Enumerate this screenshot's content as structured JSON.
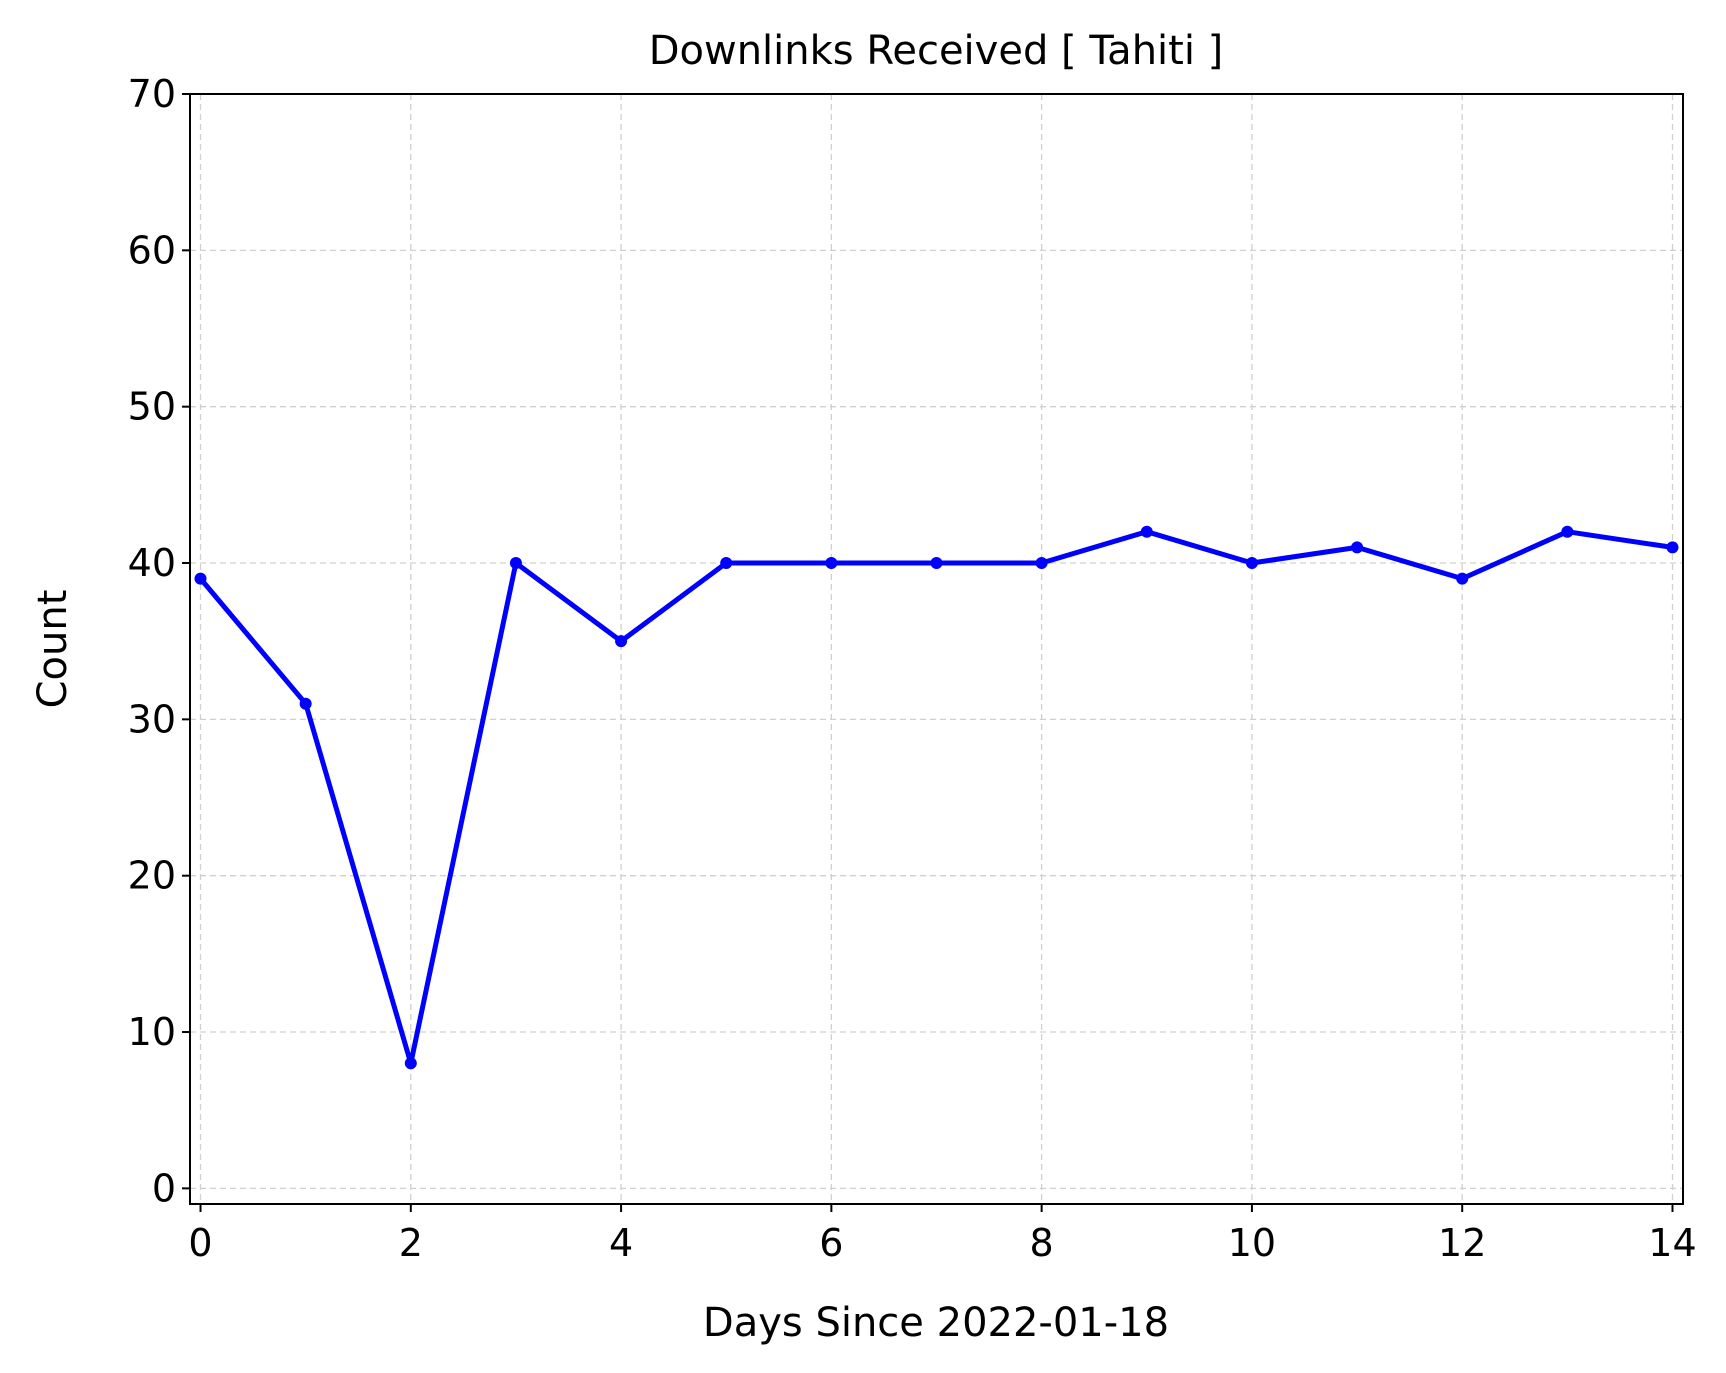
{
  "chart_data": {
    "type": "line",
    "title": "Downlinks Received [ Tahiti ]",
    "xlabel": "Days Since 2022-01-18",
    "ylabel": "Count",
    "xlim": [
      -0.1,
      14.1
    ],
    "ylim": [
      -1,
      70
    ],
    "xticks": [
      0,
      2,
      4,
      6,
      8,
      10,
      12,
      14
    ],
    "yticks": [
      0,
      10,
      20,
      30,
      40,
      50,
      60,
      70
    ],
    "grid": true,
    "legend": "none",
    "series": [
      {
        "color": "#0000ff",
        "marker": "circle",
        "x": [
          0,
          1,
          2,
          3,
          4,
          5,
          6,
          7,
          8,
          9,
          10,
          11,
          12,
          13,
          14
        ],
        "y": [
          39,
          31,
          8,
          40,
          35,
          40,
          40,
          40,
          40,
          42,
          40,
          41,
          39,
          42,
          41
        ]
      }
    ]
  }
}
